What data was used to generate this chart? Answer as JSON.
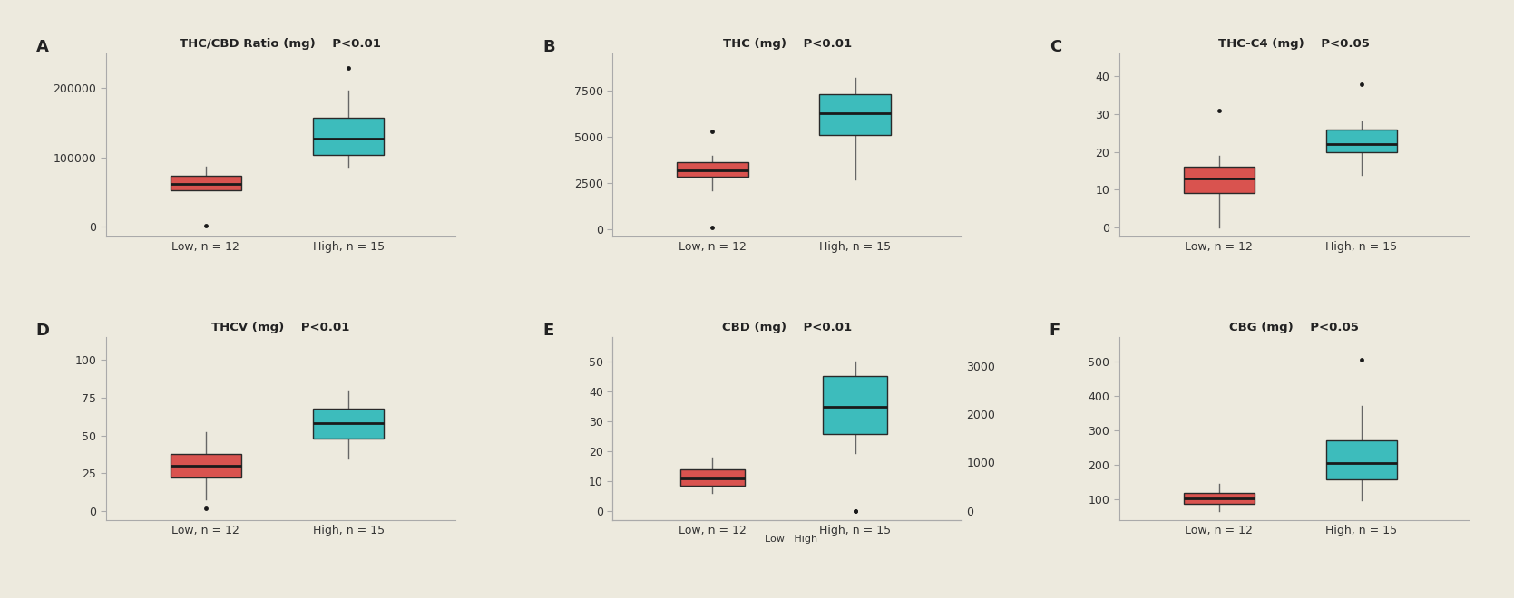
{
  "background_color": "#edeade",
  "low_color": "#d9534f",
  "high_color": "#3dbcbc",
  "median_color": "#1a1a1a",
  "whisker_color": "#666666",
  "outlier_color": "#1a1a1a",
  "panels": [
    {
      "label": "A",
      "title": "THC/CBD Ratio (mg)",
      "pvalue": "P<0.01",
      "yticks": [
        0,
        100000,
        200000
      ],
      "ylim": [
        -15000,
        250000
      ],
      "low": {
        "q1": 52000,
        "median": 62000,
        "q3": 73000,
        "whislo": 52000,
        "whishi": 87000,
        "fliers": [
          1500
        ]
      },
      "high": {
        "q1": 103000,
        "median": 127000,
        "q3": 157000,
        "whislo": 87000,
        "whishi": 197000,
        "fliers": [
          230000
        ]
      },
      "xlabel_low": "Low, n = 12",
      "xlabel_high": "High, n = 15"
    },
    {
      "label": "B",
      "title": "THC (mg)",
      "pvalue": "P<0.01",
      "yticks": [
        0,
        2500,
        5000,
        7500
      ],
      "ylim": [
        -400,
        9500
      ],
      "low": {
        "q1": 2850,
        "median": 3200,
        "q3": 3650,
        "whislo": 2100,
        "whishi": 4000,
        "fliers": [
          100,
          5300
        ]
      },
      "high": {
        "q1": 5100,
        "median": 6300,
        "q3": 7300,
        "whislo": 2700,
        "whishi": 8200,
        "fliers": []
      },
      "xlabel_low": "Low, n = 12",
      "xlabel_high": "High, n = 15"
    },
    {
      "label": "C",
      "title": "THC-C4 (mg)",
      "pvalue": "P<0.05",
      "yticks": [
        0,
        10,
        20,
        30,
        40
      ],
      "ylim": [
        -2.5,
        46
      ],
      "low": {
        "q1": 9,
        "median": 13,
        "q3": 16,
        "whislo": 0,
        "whishi": 19,
        "fliers": [
          31
        ]
      },
      "high": {
        "q1": 20,
        "median": 22,
        "q3": 26,
        "whislo": 14,
        "whishi": 28,
        "fliers": [
          38
        ]
      },
      "xlabel_low": "Low, n = 12",
      "xlabel_high": "High, n = 15"
    },
    {
      "label": "D",
      "title": "THCV (mg)",
      "pvalue": "P<0.01",
      "yticks": [
        0,
        25,
        50,
        75,
        100
      ],
      "ylim": [
        -6,
        115
      ],
      "low": {
        "q1": 22,
        "median": 30,
        "q3": 38,
        "whislo": 8,
        "whishi": 52,
        "fliers": [
          2
        ]
      },
      "high": {
        "q1": 48,
        "median": 58,
        "q3": 68,
        "whislo": 35,
        "whishi": 80,
        "fliers": []
      },
      "xlabel_low": "Low, n = 12",
      "xlabel_high": "High, n = 15"
    },
    {
      "label": "E",
      "title": "CBD (mg)",
      "pvalue": "P<0.01",
      "yticks_left": [
        0,
        10,
        20,
        30,
        40,
        50
      ],
      "yticks_right": [
        0,
        1000,
        2000,
        3000
      ],
      "ylim_left": [
        -3,
        58
      ],
      "ylim_right": [
        -200,
        3600
      ],
      "low": {
        "q1": 8.5,
        "median": 11,
        "q3": 14,
        "whislo": 6,
        "whishi": 18,
        "fliers": []
      },
      "high": {
        "q1": 1600,
        "median": 2150,
        "q3": 2800,
        "whislo": 1200,
        "whishi": 3100,
        "fliers": [
          0,
          0
        ]
      },
      "xlabel_low": "Low, n = 12",
      "xlabel_high": "High, n = 15",
      "dual_axis": true
    },
    {
      "label": "F",
      "title": "CBG (mg)",
      "pvalue": "P<0.05",
      "yticks": [
        100,
        200,
        300,
        400,
        500
      ],
      "ylim": [
        40,
        570
      ],
      "low": {
        "q1": 88,
        "median": 103,
        "q3": 120,
        "whislo": 68,
        "whishi": 145,
        "fliers": []
      },
      "high": {
        "q1": 158,
        "median": 205,
        "q3": 272,
        "whislo": 98,
        "whishi": 372,
        "fliers": [
          505
        ]
      },
      "xlabel_low": "Low, n = 12",
      "xlabel_high": "High, n = 15"
    }
  ]
}
